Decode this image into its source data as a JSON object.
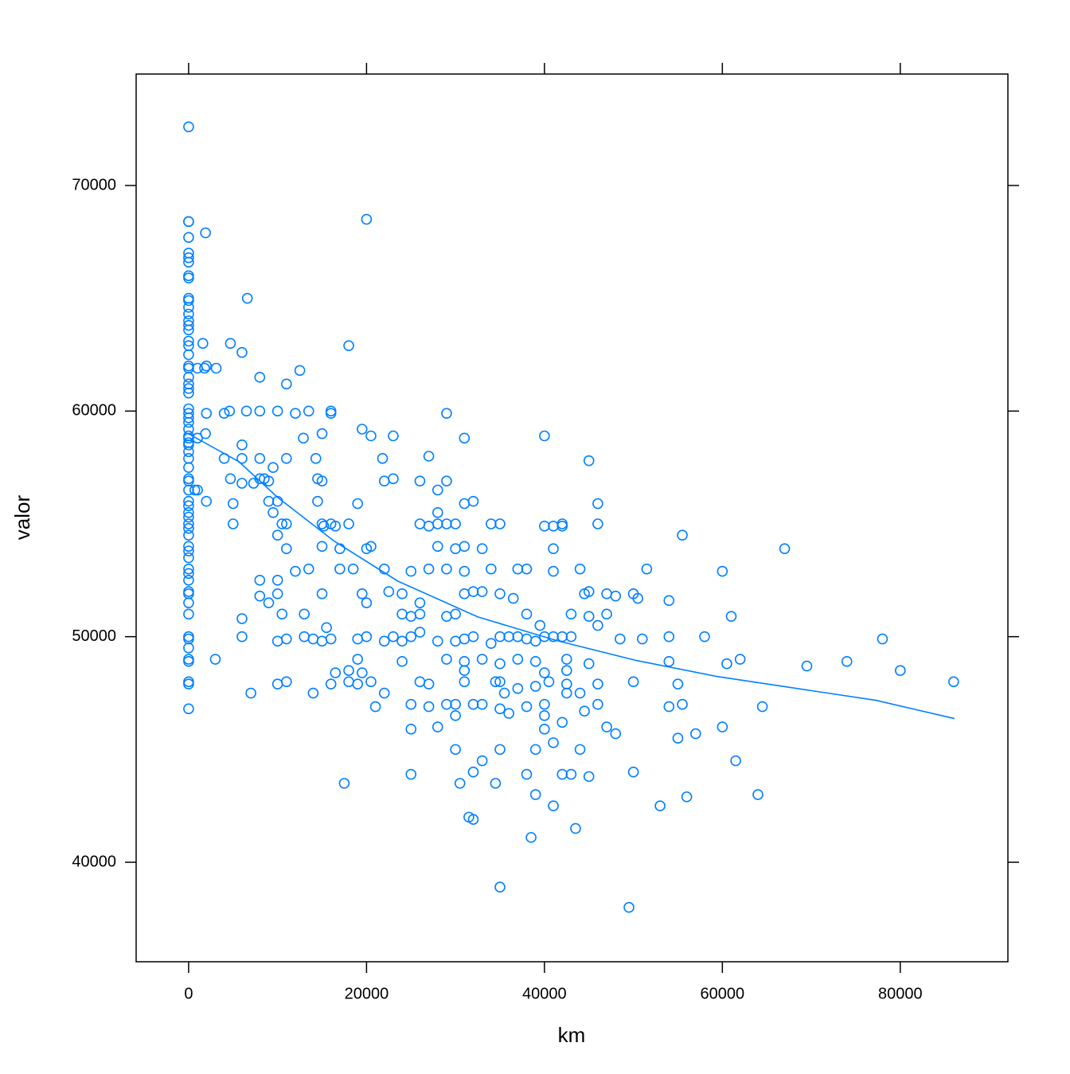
{
  "chart_data": {
    "type": "scatter",
    "xlabel": "km",
    "ylabel": "valor",
    "color": "#0080ff",
    "xlim": [
      -5900,
      92100
    ],
    "ylim": [
      35590,
      74940
    ],
    "xticks": [
      0,
      20000,
      40000,
      60000,
      80000
    ],
    "yticks": [
      40000,
      50000,
      60000,
      70000
    ],
    "grid": false,
    "x": [
      0,
      0,
      0,
      0,
      0,
      0,
      0,
      0,
      0,
      0,
      0,
      0,
      0,
      0,
      0,
      0,
      0,
      0,
      0,
      0,
      0,
      0,
      0,
      0,
      0,
      0,
      0,
      0,
      0,
      0,
      0,
      0,
      0,
      0,
      0,
      0,
      0,
      0,
      0,
      0,
      0,
      0,
      0,
      0,
      0,
      0,
      0,
      0,
      0,
      0,
      0,
      0,
      0,
      0,
      0,
      0,
      0,
      0,
      0,
      0,
      0,
      0,
      0,
      0,
      0,
      1900,
      20000,
      6600,
      4700,
      1600,
      6000,
      18000,
      1000,
      1800,
      2000,
      3100,
      12500,
      8000,
      11000,
      2000,
      4000,
      4600,
      6500,
      8000,
      10000,
      12000,
      13500,
      16000,
      16000,
      29000,
      1900,
      1000,
      12900,
      15000,
      19500,
      20500,
      23000,
      31000,
      40000,
      6000,
      4000,
      6000,
      8000,
      11000,
      14300,
      21800,
      27000,
      45000,
      9500,
      4700,
      6000,
      7300,
      8000,
      8500,
      9000,
      14500,
      15000,
      22000,
      23000,
      26000,
      28000,
      29000,
      700,
      1000,
      2000,
      5000,
      9000,
      10000,
      14500,
      19000,
      31000,
      32000,
      46000,
      9500,
      28000,
      5000,
      10500,
      11000,
      15000,
      15200,
      16000,
      16500,
      18000,
      26000,
      27000,
      28000,
      29000,
      30000,
      34000,
      35000,
      40000,
      41000,
      42000,
      42000,
      46000,
      55500,
      10000,
      11000,
      15000,
      17000,
      20000,
      20500,
      28000,
      30000,
      31000,
      33000,
      41000,
      67000,
      12000,
      13500,
      17000,
      18500,
      22000,
      25000,
      27000,
      29000,
      31000,
      34000,
      37000,
      38000,
      41000,
      44000,
      51500,
      60000,
      8000,
      10000,
      15000,
      8000,
      9000,
      10000,
      19500,
      20000,
      22500,
      24000,
      26000,
      31000,
      32000,
      33000,
      35000,
      36500,
      44500,
      45000,
      47000,
      48000,
      50000,
      50500,
      54000,
      6000,
      10500,
      13000,
      24000,
      25000,
      26000,
      29000,
      30000,
      38000,
      39500,
      43000,
      45000,
      46000,
      47000,
      61000,
      15500,
      6000,
      10000,
      11000,
      13000,
      14000,
      15000,
      16000,
      19000,
      20000,
      22000,
      23000,
      24000,
      25000,
      26000,
      28000,
      30000,
      31000,
      32000,
      34000,
      35000,
      36000,
      37000,
      38000,
      39000,
      40000,
      41000,
      42000,
      43000,
      48500,
      51000,
      54000,
      58000,
      78000,
      3000,
      19000,
      24000,
      29000,
      31000,
      33000,
      35000,
      37000,
      39000,
      42500,
      45000,
      54000,
      60500,
      62000,
      69500,
      74000,
      16500,
      18000,
      19500,
      31000,
      40000,
      42500,
      80000,
      10000,
      11000,
      16000,
      18000,
      19000,
      20500,
      26000,
      27000,
      31000,
      34500,
      35000,
      37000,
      39000,
      40500,
      42500,
      46000,
      50000,
      55000,
      86000,
      7000,
      14000,
      22000,
      35500,
      42500,
      44000,
      21000,
      25000,
      27000,
      29000,
      30000,
      32000,
      33000,
      35000,
      36000,
      38000,
      40000,
      40000,
      44500,
      46000,
      54000,
      55500,
      64500,
      25000,
      28000,
      30000,
      40000,
      42000,
      47000,
      48000,
      55000,
      57000,
      60000,
      30000,
      33000,
      35000,
      39000,
      41000,
      44000,
      61500,
      25000,
      32000,
      38000,
      42000,
      43000,
      45000,
      50000,
      17500,
      30500,
      34500,
      39000,
      41000,
      53000,
      56000,
      64000,
      31500,
      32000,
      43500,
      38500,
      35000,
      49500
    ],
    "y": [
      72600,
      68400,
      68400,
      67700,
      67000,
      66800,
      66600,
      66000,
      65900,
      65000,
      64900,
      64600,
      64300,
      64000,
      63800,
      63600,
      63100,
      62900,
      62500,
      62000,
      61900,
      61500,
      61200,
      61000,
      60800,
      60100,
      59900,
      59700,
      59500,
      59200,
      58900,
      58800,
      58600,
      58500,
      58200,
      57900,
      57500,
      57000,
      56900,
      56500,
      56000,
      55800,
      55500,
      55300,
      55000,
      54800,
      54500,
      54000,
      53800,
      53500,
      53000,
      52800,
      52500,
      52000,
      51900,
      51500,
      51000,
      50000,
      49900,
      49500,
      49000,
      48900,
      48000,
      47900,
      46800,
      67900,
      68500,
      65000,
      63000,
      63000,
      62600,
      62900,
      61900,
      61900,
      62000,
      61900,
      61800,
      61500,
      61200,
      59900,
      59900,
      60000,
      60000,
      60000,
      60000,
      59900,
      60000,
      60000,
      59900,
      59900,
      59000,
      58800,
      58800,
      59000,
      59200,
      58900,
      58900,
      58800,
      58900,
      58500,
      57900,
      57900,
      57900,
      57900,
      57900,
      57900,
      58000,
      57800,
      57500,
      57000,
      56800,
      56800,
      57000,
      57000,
      56900,
      57000,
      56900,
      56900,
      57000,
      56900,
      56500,
      56900,
      56500,
      56500,
      56000,
      55900,
      56000,
      56000,
      56000,
      55900,
      55900,
      56000,
      55900,
      55500,
      55500,
      55000,
      55000,
      55000,
      55000,
      54900,
      55000,
      54900,
      55000,
      55000,
      54900,
      55000,
      55000,
      55000,
      55000,
      55000,
      54900,
      54900,
      55000,
      54900,
      55000,
      54500,
      54500,
      53900,
      54000,
      53900,
      53900,
      54000,
      54000,
      53900,
      54000,
      53900,
      53900,
      53900,
      52900,
      53000,
      53000,
      53000,
      53000,
      52900,
      53000,
      53000,
      52900,
      53000,
      53000,
      53000,
      52900,
      53000,
      53000,
      52900,
      52500,
      52500,
      51900,
      51800,
      51500,
      51900,
      51900,
      51500,
      52000,
      51900,
      51500,
      51900,
      52000,
      52000,
      51900,
      51700,
      51900,
      52000,
      51900,
      51800,
      51900,
      51700,
      51600,
      50800,
      51000,
      51000,
      51000,
      50900,
      51000,
      50900,
      51000,
      51000,
      50500,
      51000,
      50900,
      50500,
      51000,
      50900,
      50400,
      50000,
      49800,
      49900,
      50000,
      49900,
      49800,
      49900,
      49900,
      50000,
      49800,
      50000,
      49800,
      50000,
      50200,
      49800,
      49800,
      49900,
      50000,
      49700,
      50000,
      50000,
      50000,
      49900,
      49800,
      50000,
      50000,
      50000,
      50000,
      49900,
      49900,
      50000,
      50000,
      49900,
      49000,
      49000,
      48900,
      49000,
      48900,
      49000,
      48800,
      49000,
      48900,
      49000,
      48800,
      48900,
      48800,
      49000,
      48700,
      48900,
      48400,
      48500,
      48400,
      48500,
      48400,
      48500,
      48500,
      47900,
      48000,
      47900,
      48000,
      47900,
      48000,
      48000,
      47900,
      48000,
      48000,
      48000,
      47700,
      47800,
      48000,
      47900,
      47900,
      48000,
      47900,
      48000,
      47500,
      47500,
      47500,
      47500,
      47500,
      47500,
      46900,
      47000,
      46900,
      47000,
      47000,
      47000,
      47000,
      46800,
      46600,
      46900,
      47000,
      46500,
      46700,
      47000,
      46900,
      47000,
      46900,
      45900,
      46000,
      46500,
      45900,
      46200,
      46000,
      45700,
      45500,
      45700,
      46000,
      45000,
      44500,
      45000,
      45000,
      45300,
      45000,
      44500,
      43900,
      44000,
      43900,
      43900,
      43900,
      43800,
      44000,
      43500,
      43500,
      43500,
      43000,
      42500,
      42500,
      42900,
      43000,
      42000,
      41900,
      41500,
      41100,
      38900,
      38000
    ],
    "smooth": {
      "x": [
        0,
        5640,
        10020,
        16380,
        23530,
        32480,
        41430,
        50380,
        59330,
        68280,
        77230,
        86090
      ],
      "y": [
        58990,
        57760,
        56170,
        54230,
        52460,
        50880,
        49820,
        48940,
        48240,
        47710,
        47180,
        46370
      ]
    }
  }
}
